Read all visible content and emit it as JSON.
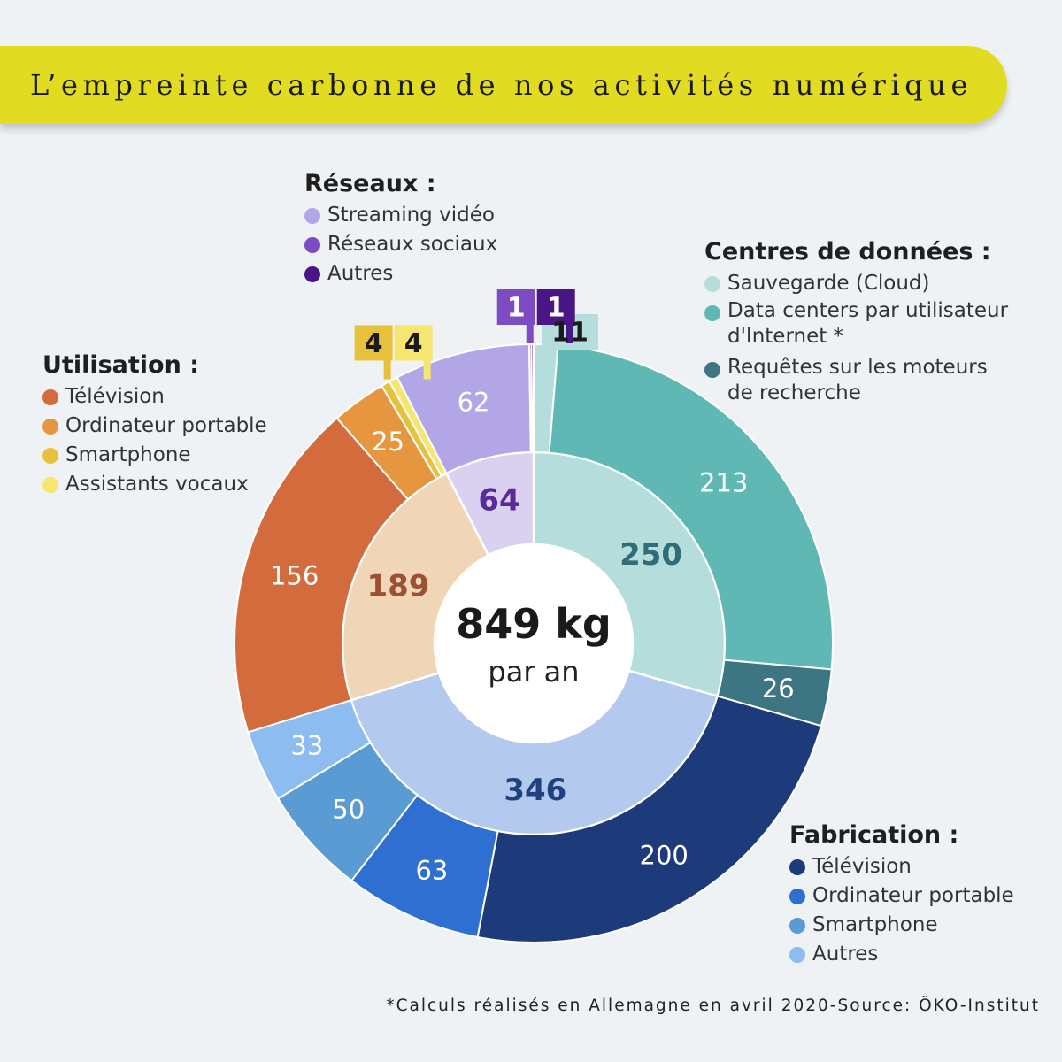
{
  "title": "L’empreinte carbonne de nos activités numérique",
  "footnote": "*Calculs réalisés en Allemagne en avril 2020-Source: ÖKO-Institut",
  "legends": {
    "reseaux": {
      "title": "Réseaux :",
      "items": [
        "Streaming vidéo",
        "Réseaux sociaux",
        "Autres"
      ],
      "colors": [
        "#b3a6e6",
        "#7d4cc4",
        "#4a1685"
      ]
    },
    "centres": {
      "title": "Centres de données :",
      "items": [
        "Sauvegarde (Cloud)",
        "Data centers par utilisateur\nd'Internet *",
        "Requêtes sur les moteurs\nde recherche"
      ],
      "colors": [
        "#b5dddb",
        "#5fb8b3",
        "#3d7582"
      ]
    },
    "utilisation": {
      "title": "Utilisation :",
      "items": [
        "Télévision",
        "Ordinateur portable",
        "Smartphone",
        "Assistants vocaux"
      ],
      "colors": [
        "#d46b3c",
        "#e5963f",
        "#e8c13c",
        "#f6e56e"
      ]
    },
    "fabrication": {
      "title": "Fabrication :",
      "items": [
        "Télévision",
        "Ordinateur portable",
        "Smartphone",
        "Autres"
      ],
      "colors": [
        "#1d3a7a",
        "#2f6fd2",
        "#5a9bd4",
        "#8dbcf0"
      ]
    }
  },
  "chart_data": {
    "type": "pie",
    "subtype": "sunburst",
    "total": 849,
    "center_value": "849 kg",
    "center_unit": "par an",
    "groups": [
      {
        "name": "Centres de données",
        "value": 250,
        "color": "#b5dddb",
        "text_color": "#2f6e79",
        "children": [
          {
            "name": "Sauvegarde (Cloud)",
            "value": 11,
            "color": "#b5dddb",
            "label_color": "#1a1a1a",
            "outside": true
          },
          {
            "name": "Data centers par utilisateur d'Internet",
            "value": 213,
            "color": "#5fb8b3",
            "label_color": "#ffffff"
          },
          {
            "name": "Requêtes sur les moteurs de recherche",
            "value": 26,
            "color": "#3d7582",
            "label_color": "#ffffff"
          }
        ]
      },
      {
        "name": "Fabrication",
        "value": 346,
        "color": "#b3c9ee",
        "text_color": "#21407f",
        "children": [
          {
            "name": "Télévision",
            "value": 200,
            "color": "#1d3a7a",
            "label_color": "#ffffff"
          },
          {
            "name": "Ordinateur portable",
            "value": 63,
            "color": "#2f6fd2",
            "label_color": "#ffffff"
          },
          {
            "name": "Smartphone",
            "value": 50,
            "color": "#5a9bd4",
            "label_color": "#ffffff"
          },
          {
            "name": "Autres",
            "value": 33,
            "color": "#8dbcf0",
            "label_color": "#ffffff"
          }
        ]
      },
      {
        "name": "Utilisation",
        "value": 189,
        "color": "#f0d5b7",
        "text_color": "#9c5134",
        "children": [
          {
            "name": "Télévision",
            "value": 156,
            "color": "#d46b3c",
            "label_color": "#ffffff"
          },
          {
            "name": "Ordinateur portable",
            "value": 25,
            "color": "#e5963f",
            "label_color": "#ffffff"
          },
          {
            "name": "Smartphone",
            "value": 4,
            "color": "#e8c13c",
            "label_color": "#1a1a1a",
            "outside": true
          },
          {
            "name": "Assistants vocaux",
            "value": 4,
            "color": "#f6e56e",
            "label_color": "#1a1a1a",
            "outside": true
          }
        ]
      },
      {
        "name": "Réseaux",
        "value": 64,
        "color": "#d9d1ef",
        "text_color": "#5a2a98",
        "children": [
          {
            "name": "Streaming vidéo",
            "value": 62,
            "color": "#b3a6e6",
            "label_color": "#ffffff"
          },
          {
            "name": "Réseaux sociaux",
            "value": 1,
            "color": "#7d4cc4",
            "label_color": "#ffffff",
            "outside": true
          },
          {
            "name": "Autres",
            "value": 1,
            "color": "#4a1685",
            "label_color": "#ffffff",
            "outside": true
          }
        ]
      }
    ]
  }
}
